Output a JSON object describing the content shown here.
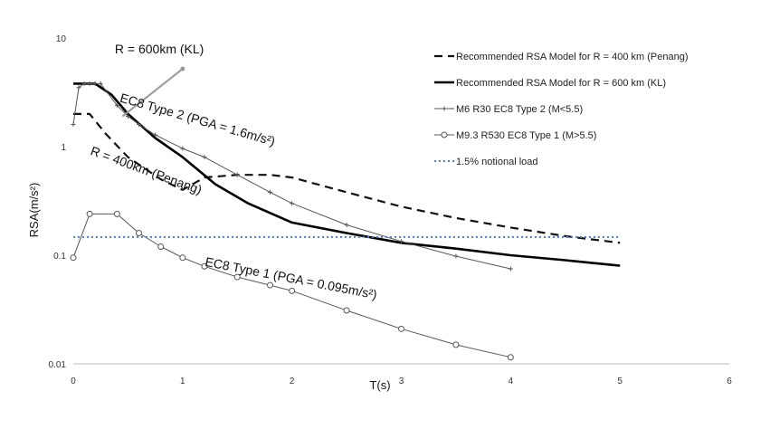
{
  "chart_data": {
    "type": "line",
    "title": "",
    "xlabel": "T(s)",
    "ylabel": "RSA(m/s²)",
    "xlim": [
      0,
      6
    ],
    "ylim": [
      0.01,
      10
    ],
    "yscale": "log",
    "x_ticks": [
      0,
      1,
      2,
      3,
      4,
      5,
      6
    ],
    "y_ticks": [
      {
        "value": 0.01,
        "label": "0.01"
      },
      {
        "value": 0.1,
        "label": "0.1"
      },
      {
        "value": 1,
        "label": "1"
      },
      {
        "value": 10,
        "label": "10"
      }
    ],
    "grid": false,
    "legend_position": "top-right",
    "series": [
      {
        "name": "Recommended RSA Model for R = 400 km (Penang)",
        "style": "dashed",
        "color": "#111111",
        "x": [
          0,
          0.15,
          0.3,
          0.5,
          0.8,
          1.0,
          1.2,
          1.5,
          1.8,
          2.0,
          2.5,
          3.0,
          3.5,
          4.0,
          4.5,
          5.0
        ],
        "y": [
          2.0,
          2.0,
          1.3,
          0.8,
          0.5,
          0.4,
          0.52,
          0.55,
          0.55,
          0.52,
          0.38,
          0.28,
          0.22,
          0.18,
          0.15,
          0.13
        ]
      },
      {
        "name": "Recommended RSA Model for R = 600 km (KL)",
        "style": "solid-thick",
        "color": "#000000",
        "x": [
          0,
          0.2,
          0.35,
          0.5,
          0.75,
          1.0,
          1.3,
          1.6,
          2.0,
          2.5,
          3.0,
          3.5,
          4.0,
          4.5,
          5.0
        ],
        "y": [
          3.8,
          3.8,
          3.0,
          2.0,
          1.2,
          0.8,
          0.45,
          0.3,
          0.2,
          0.16,
          0.13,
          0.115,
          0.1,
          0.09,
          0.08
        ]
      },
      {
        "name": "M6 R30 EC8 Type 2 (M<5.5)",
        "style": "thin-plus",
        "color": "#555555",
        "x": [
          0,
          0.05,
          0.1,
          0.15,
          0.2,
          0.25,
          0.4,
          0.5,
          0.6,
          0.75,
          1.0,
          1.2,
          1.5,
          1.8,
          2.0,
          2.5,
          3.0,
          3.5,
          4.0
        ],
        "y": [
          1.6,
          3.5,
          3.8,
          3.8,
          3.8,
          3.8,
          2.4,
          1.9,
          1.6,
          1.28,
          0.96,
          0.8,
          0.55,
          0.38,
          0.3,
          0.19,
          0.134,
          0.098,
          0.075
        ]
      },
      {
        "name": "M9.3 R530 EC8 Type 1 (M>5.5)",
        "style": "thin-circle",
        "color": "#555555",
        "x": [
          0,
          0.15,
          0.4,
          0.6,
          0.8,
          1.0,
          1.2,
          1.5,
          1.8,
          2.0,
          2.5,
          3.0,
          3.5,
          4.0
        ],
        "y": [
          0.095,
          0.24,
          0.24,
          0.16,
          0.12,
          0.095,
          0.079,
          0.063,
          0.053,
          0.047,
          0.031,
          0.021,
          0.015,
          0.0115
        ]
      },
      {
        "name": "1.5% notional load",
        "style": "dotted",
        "color": "#4a7fc0",
        "x": [
          0,
          5
        ],
        "y": [
          0.147,
          0.147
        ]
      }
    ],
    "annotations": [
      {
        "text": "R = 600km (KL)",
        "x": 1.0,
        "y": 5.0,
        "rotate": 0
      },
      {
        "text": "EC8 Type 2 (PGA = 1.6m/s²)",
        "x": 0.42,
        "y": 2.6,
        "rotate": 16
      },
      {
        "text": "R = 400km (Penang)",
        "x": 0.15,
        "y": 0.85,
        "rotate": 20
      },
      {
        "text": "EC8 Type 1 (PGA = 0.095m/s²)",
        "x": 1.2,
        "y": 0.08,
        "rotate": 11
      }
    ]
  }
}
